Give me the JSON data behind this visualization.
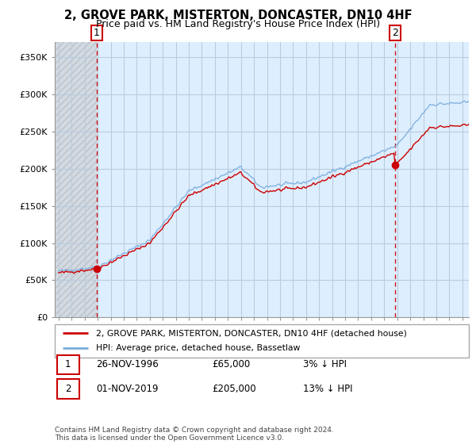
{
  "title_line1": "2, GROVE PARK, MISTERTON, DONCASTER, DN10 4HF",
  "title_line2": "Price paid vs. HM Land Registry's House Price Index (HPI)",
  "ylim": [
    0,
    370000
  ],
  "yticks": [
    0,
    50000,
    100000,
    150000,
    200000,
    250000,
    300000,
    350000
  ],
  "ytick_labels": [
    "£0",
    "£50K",
    "£100K",
    "£150K",
    "£200K",
    "£250K",
    "£300K",
    "£350K"
  ],
  "xlim_start": 1993.7,
  "xlim_end": 2025.5,
  "purchase1_date": 1996.92,
  "purchase1_price": 65000,
  "purchase2_date": 2019.84,
  "purchase2_price": 205000,
  "legend_line1": "2, GROVE PARK, MISTERTON, DONCASTER, DN10 4HF (detached house)",
  "legend_line2": "HPI: Average price, detached house, Bassetlaw",
  "table_row1": [
    "1",
    "26-NOV-1996",
    "£65,000",
    "3% ↓ HPI"
  ],
  "table_row2": [
    "2",
    "01-NOV-2019",
    "£205,000",
    "13% ↓ HPI"
  ],
  "footnote": "Contains HM Land Registry data © Crown copyright and database right 2024.\nThis data is licensed under the Open Government Licence v3.0.",
  "hpi_color": "#7aaddc",
  "property_color": "#cc0000",
  "bg_light": "#ddeeff",
  "bg_hatch": "#d8d8d8",
  "grid_color": "#bbccdd",
  "vline_color": "#cc0000"
}
